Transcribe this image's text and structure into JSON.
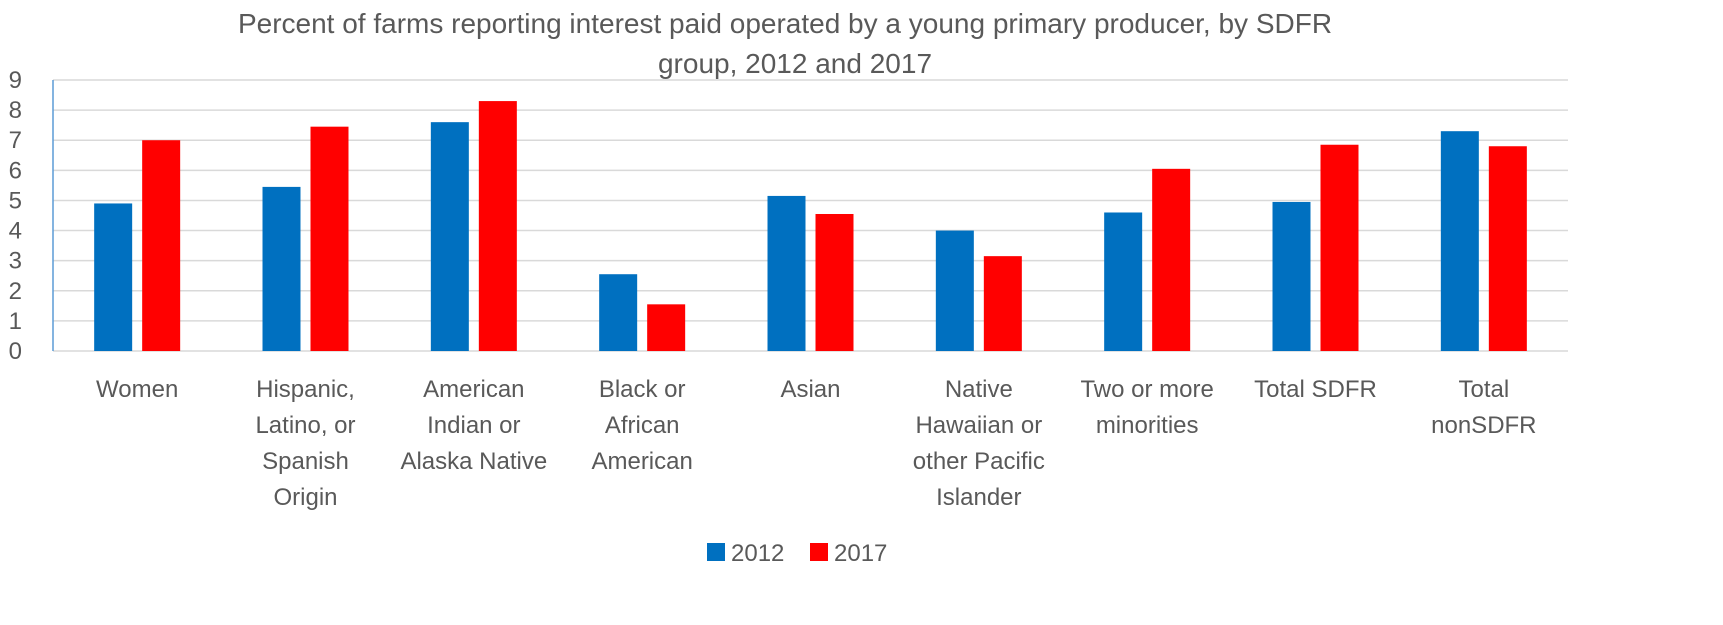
{
  "chart_data": {
    "type": "bar",
    "title_lines": [
      "Percent of farms reporting interest paid operated by a young primary producer, by SDFR",
      "group, 2012 and 2017"
    ],
    "xlabel": "",
    "ylabel": "",
    "ylim": [
      0,
      9
    ],
    "yticks": [
      "0",
      "1",
      "2",
      "3",
      "4",
      "5",
      "6",
      "7",
      "8",
      "9"
    ],
    "grid": true,
    "legend_position": "bottom",
    "categories": [
      {
        "label": "Women",
        "lines": [
          "Women"
        ]
      },
      {
        "label": "Hispanic, Latino, or Spanish Origin",
        "lines": [
          "Hispanic,",
          "Latino, or",
          "Spanish",
          "Origin"
        ]
      },
      {
        "label": "American Indian or Alaska Native",
        "lines": [
          "American",
          "Indian or",
          "Alaska Native"
        ]
      },
      {
        "label": "Black or African American",
        "lines": [
          "Black or",
          "African",
          "American"
        ]
      },
      {
        "label": "Asian",
        "lines": [
          "Asian"
        ]
      },
      {
        "label": "Native Hawaiian or other Pacific Islander",
        "lines": [
          "Native",
          "Hawaiian or",
          "other Pacific",
          "Islander"
        ]
      },
      {
        "label": "Two or more minorities",
        "lines": [
          "Two or more",
          "minorities"
        ]
      },
      {
        "label": "Total SDFR",
        "lines": [
          "Total SDFR"
        ]
      },
      {
        "label": "Total nonSDFR",
        "lines": [
          "Total",
          "nonSDFR"
        ]
      }
    ],
    "series": [
      {
        "name": "2012",
        "color": "#0070C0",
        "values": [
          4.9,
          5.45,
          7.6,
          2.55,
          5.15,
          4.0,
          4.6,
          4.95,
          7.3
        ]
      },
      {
        "name": "2017",
        "color": "#FF0000",
        "values": [
          7.0,
          7.45,
          8.3,
          1.55,
          4.55,
          3.15,
          6.05,
          6.85,
          6.8
        ]
      }
    ],
    "colors": {
      "gridline": "#D9D9D9",
      "axis_text": "#595959",
      "y_axis_line": "#5B9BD5"
    }
  }
}
